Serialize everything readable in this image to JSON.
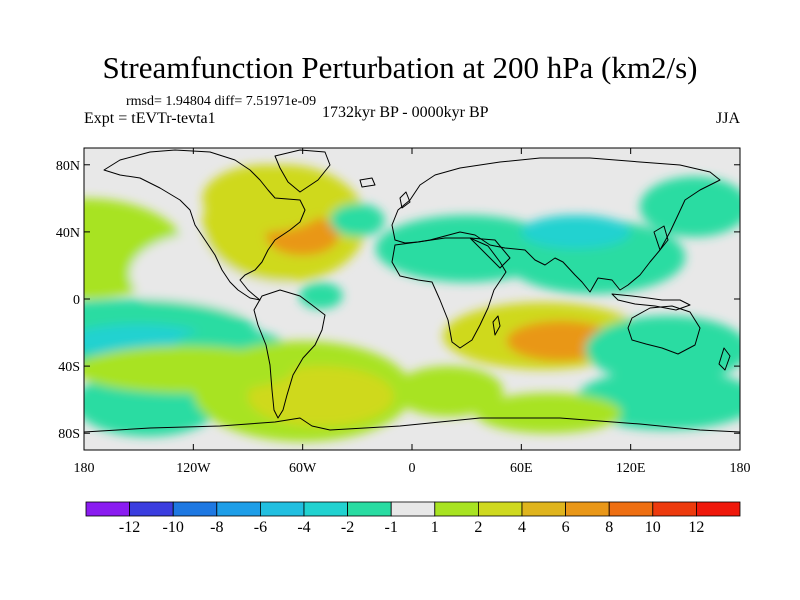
{
  "title": "Streamfunction Perturbation at 200 hPa (km2/s)",
  "stats": "rmsd= 1.94804 diff= 7.51971e-09",
  "experiment": "Expt = tEVTr-tevta1",
  "period": "1732kyr BP - 0000kyr BP",
  "season": "JJA",
  "y_axis": {
    "ticks": [
      {
        "label": "80N",
        "lat": 80
      },
      {
        "label": "40N",
        "lat": 40
      },
      {
        "label": "0",
        "lat": 0
      },
      {
        "label": "40S",
        "lat": -40
      },
      {
        "label": "80S",
        "lat": -80
      }
    ]
  },
  "x_axis": {
    "ticks": [
      {
        "label": "180",
        "lon": -180
      },
      {
        "label": "120W",
        "lon": -120
      },
      {
        "label": "60W",
        "lon": -60
      },
      {
        "label": "0",
        "lon": 0
      },
      {
        "label": "60E",
        "lon": 60
      },
      {
        "label": "120E",
        "lon": 120
      },
      {
        "label": "180",
        "lon": 180
      }
    ]
  },
  "colorbar": {
    "boundary_labels": [
      "-12",
      "-10",
      "-8",
      "-6",
      "-4",
      "-2",
      "-1",
      "1",
      "2",
      "4",
      "6",
      "8",
      "10",
      "12"
    ],
    "colors": [
      "#8a1cf0",
      "#3b3ddf",
      "#1e78e2",
      "#1e9ee8",
      "#22bfe0",
      "#21d2d0",
      "#29dca2",
      "#e8e8e8",
      "#a8e321",
      "#cfd91f",
      "#dfb41d",
      "#e99718",
      "#ee6f12",
      "#ed3a0d",
      "#ef180b"
    ]
  },
  "anomalies": [
    {
      "lon": -180,
      "lat": 30,
      "rx": 55,
      "ry": 30,
      "level": 1
    },
    {
      "lon": -110,
      "lat": 15,
      "rx": 45,
      "ry": 25,
      "level": 0
    },
    {
      "lon": -70,
      "lat": 45,
      "rx": 45,
      "ry": 35,
      "level": 2
    },
    {
      "lon": -60,
      "lat": 38,
      "rx": 20,
      "ry": 12,
      "level": 4
    },
    {
      "lon": -80,
      "lat": 60,
      "rx": 35,
      "ry": 20,
      "level": 2
    },
    {
      "lon": -30,
      "lat": 47,
      "rx": 15,
      "ry": 10,
      "level": -1
    },
    {
      "lon": -50,
      "lat": 2,
      "rx": 12,
      "ry": 8,
      "level": -1
    },
    {
      "lon": -155,
      "lat": -20,
      "rx": 70,
      "ry": 20,
      "level": -1
    },
    {
      "lon": -150,
      "lat": -25,
      "rx": 40,
      "ry": 10,
      "level": -2
    },
    {
      "lon": -100,
      "lat": -28,
      "rx": 30,
      "ry": 10,
      "level": -1
    },
    {
      "lon": -145,
      "lat": -62,
      "rx": 40,
      "ry": 20,
      "level": -1
    },
    {
      "lon": -60,
      "lat": -55,
      "rx": 60,
      "ry": 30,
      "level": 1
    },
    {
      "lon": -50,
      "lat": -58,
      "rx": 40,
      "ry": 18,
      "level": 2
    },
    {
      "lon": -125,
      "lat": -42,
      "rx": 60,
      "ry": 14,
      "level": 1
    },
    {
      "lon": 30,
      "lat": 30,
      "rx": 50,
      "ry": 20,
      "level": -1
    },
    {
      "lon": 100,
      "lat": 25,
      "rx": 50,
      "ry": 22,
      "level": -1
    },
    {
      "lon": 90,
      "lat": 40,
      "rx": 30,
      "ry": 10,
      "level": -2
    },
    {
      "lon": 155,
      "lat": 55,
      "rx": 30,
      "ry": 18,
      "level": -1
    },
    {
      "lon": 72,
      "lat": -22,
      "rx": 55,
      "ry": 20,
      "level": 2
    },
    {
      "lon": 82,
      "lat": -25,
      "rx": 30,
      "ry": 12,
      "level": 4
    },
    {
      "lon": 140,
      "lat": -30,
      "rx": 45,
      "ry": 20,
      "level": -1
    },
    {
      "lon": 140,
      "lat": -60,
      "rx": 50,
      "ry": 18,
      "level": -1
    },
    {
      "lon": 20,
      "lat": -55,
      "rx": 30,
      "ry": 15,
      "level": 1
    },
    {
      "lon": 75,
      "lat": -68,
      "rx": 40,
      "ry": 12,
      "level": 1
    }
  ]
}
